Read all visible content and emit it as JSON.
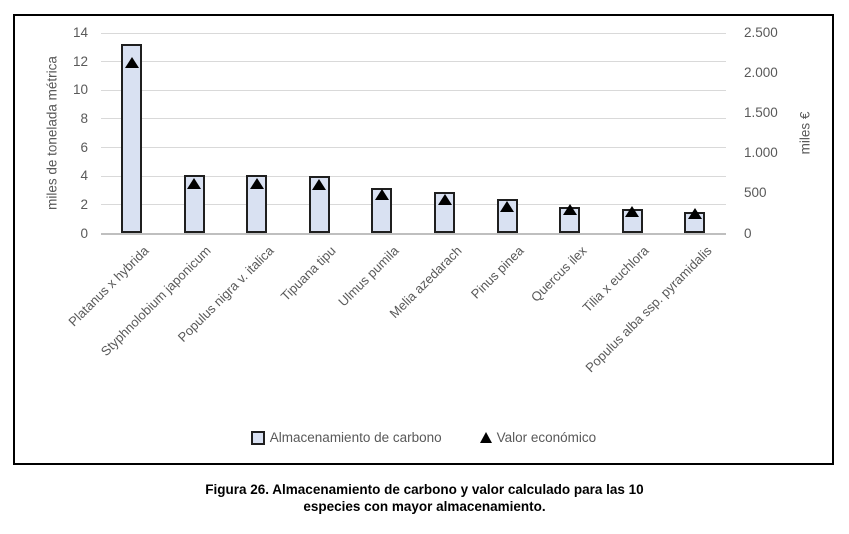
{
  "chart_data": {
    "type": "bar",
    "title": "",
    "categories": [
      "Platanus x hybrida",
      "Styphnolobium japonicum",
      "Populus nigra v. italica",
      "Tipuana tipu",
      "Ulmus pumila",
      "Melia azedarach",
      "Pinus pinea",
      "Quercus ilex",
      "Tilia x euchlora",
      "Populus alba ssp. pyramidalis"
    ],
    "series": [
      {
        "name": "Almacenamiento de carbono",
        "marker": "bar",
        "axis": "left",
        "values": [
          13.2,
          4.1,
          4.05,
          4.0,
          3.2,
          2.9,
          2.4,
          1.85,
          1.7,
          1.5
        ]
      },
      {
        "name": "Valor económico",
        "marker": "triangle",
        "axis": "right",
        "values": [
          2130,
          625,
          620,
          615,
          490,
          430,
          340,
          300,
          280,
          250
        ]
      }
    ],
    "left_axis": {
      "label": "miles de tonelada métrica",
      "min": 0,
      "max": 14,
      "step": 2,
      "tick_labels": [
        "0",
        "2",
        "4",
        "6",
        "8",
        "10",
        "12",
        "14"
      ]
    },
    "right_axis": {
      "label": "miles €",
      "min": 0,
      "max": 2500,
      "step": 500,
      "tick_labels": [
        "0",
        "500",
        "1.000",
        "1.500",
        "2.000",
        "2.500"
      ]
    },
    "grid": true,
    "legend_position": "bottom",
    "colors": {
      "bar_fill": "#D9E1F2",
      "bar_border": "#1F1F1F",
      "marker": "#000000",
      "gridline": "#D9D9D9",
      "axis_line": "#BFBFBF",
      "text": "#595959",
      "frame_border": "#000000"
    }
  },
  "legend": {
    "items": [
      {
        "label": "Almacenamiento de carbono",
        "marker": "bar-swatch"
      },
      {
        "label": "Valor económico",
        "marker": "triangle"
      }
    ]
  },
  "caption": {
    "line1": "Figura 26. Almacenamiento de carbono y valor calculado para las 10",
    "line2": "especies con mayor almacenamiento."
  }
}
